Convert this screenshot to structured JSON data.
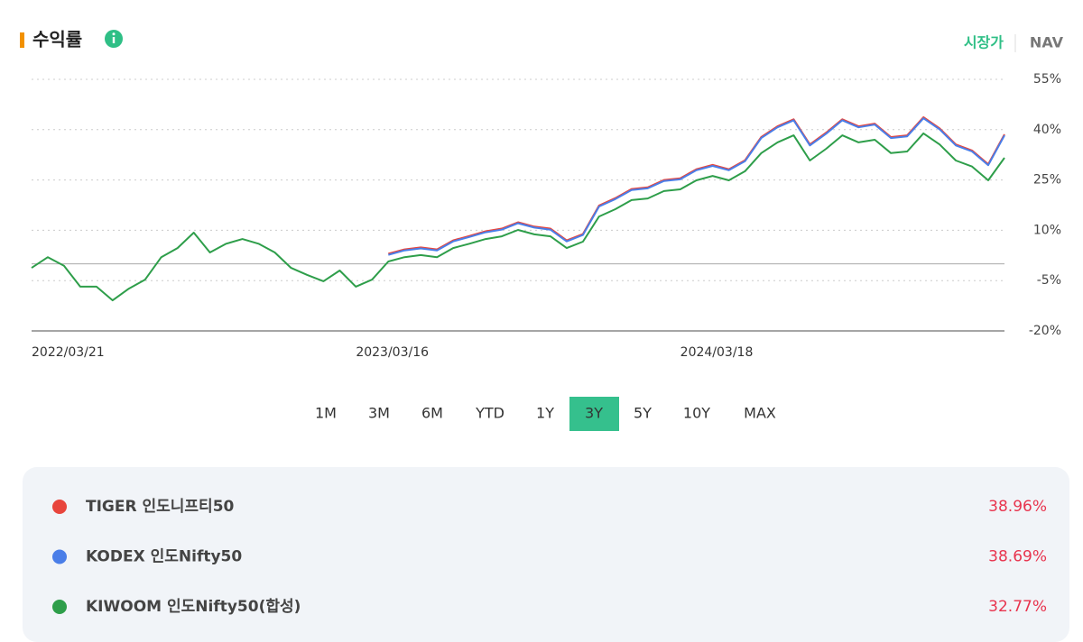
{
  "header": {
    "title": "수익률",
    "price_toggle": [
      "시장가",
      "NAV"
    ],
    "active_toggle": "시장가"
  },
  "tabs": {
    "items": [
      "1M",
      "3M",
      "6M",
      "YTD",
      "1Y",
      "3Y",
      "5Y",
      "10Y",
      "MAX"
    ],
    "active": "3Y"
  },
  "chart_data": {
    "type": "line",
    "categories": [
      "2022/03/21",
      null,
      null,
      null,
      null,
      null,
      null,
      null,
      null,
      null,
      null,
      null,
      null,
      null,
      null,
      null,
      null,
      null,
      null,
      null,
      "2023/03/16",
      null,
      null,
      null,
      null,
      null,
      null,
      null,
      null,
      null,
      null,
      null,
      null,
      null,
      null,
      null,
      null,
      null,
      null,
      null,
      "2024/03/18",
      null,
      null,
      null,
      null,
      null,
      null,
      null,
      null,
      null,
      null,
      null,
      null,
      null,
      null,
      null,
      null,
      null,
      null,
      null,
      null
    ],
    "series": [
      {
        "name": "TIGER 인도니프티50",
        "color": "#e8453c",
        "total": 38.96,
        "total_label": "38.96%",
        "values": [
          null,
          null,
          null,
          null,
          null,
          null,
          null,
          null,
          null,
          null,
          null,
          null,
          null,
          null,
          null,
          null,
          null,
          null,
          null,
          null,
          null,
          null,
          3.0,
          4.3,
          4.9,
          4.3,
          7.0,
          8.3,
          9.7,
          10.5,
          12.4,
          11.1,
          10.5,
          7.0,
          8.9,
          17.4,
          19.6,
          22.3,
          22.8,
          25.0,
          25.5,
          28.2,
          29.5,
          28.2,
          30.9,
          37.8,
          41.0,
          43.1,
          35.6,
          39.1,
          43.1,
          41.0,
          41.8,
          37.8,
          38.3,
          43.7,
          40.4,
          35.6,
          33.8,
          29.7,
          38.6
        ]
      },
      {
        "name": "KODEX 인도Nifty50",
        "color": "#4a7ee8",
        "total": 38.69,
        "total_label": "38.69%",
        "values": [
          null,
          null,
          null,
          null,
          null,
          null,
          null,
          null,
          null,
          null,
          null,
          null,
          null,
          null,
          null,
          null,
          null,
          null,
          null,
          null,
          null,
          null,
          2.7,
          4.0,
          4.6,
          4.0,
          6.7,
          8.0,
          9.4,
          10.2,
          12.1,
          10.8,
          10.2,
          6.7,
          8.6,
          17.1,
          19.3,
          22.0,
          22.5,
          24.7,
          25.2,
          27.9,
          29.2,
          27.9,
          30.6,
          37.5,
          40.7,
          42.8,
          35.3,
          38.8,
          42.8,
          40.7,
          41.5,
          37.5,
          38.0,
          43.4,
          40.1,
          35.3,
          33.5,
          29.4,
          38.3
        ]
      },
      {
        "name": "KIWOOM 인도Nifty50(합성)",
        "color": "#2e9e4a",
        "total": 32.77,
        "total_label": "32.77%",
        "values": [
          -1.2,
          2,
          -0.6,
          -6.8,
          -6.8,
          -10.9,
          -7.4,
          -4.7,
          2,
          4.7,
          9.3,
          3.4,
          6,
          7.4,
          6,
          3.4,
          -1.2,
          -3.3,
          -5.2,
          -2,
          -6.8,
          -4.7,
          0.7,
          2,
          2.6,
          2,
          4.7,
          6,
          7.4,
          8.2,
          10.1,
          8.8,
          8.2,
          4.7,
          6.6,
          14.1,
          16.3,
          19,
          19.5,
          21.7,
          22.2,
          24.9,
          26.2,
          24.9,
          27.6,
          33,
          36.2,
          38.3,
          30.8,
          34.3,
          38.3,
          36.2,
          37,
          33,
          33.5,
          38.9,
          35.6,
          30.8,
          29,
          24.9,
          31.6
        ]
      }
    ],
    "ylim": [
      -20,
      55
    ],
    "yticks": [
      {
        "value": -20,
        "label": "-20%"
      },
      {
        "value": -5,
        "label": "-5%"
      },
      {
        "value": 10,
        "label": "10%"
      },
      {
        "value": 25,
        "label": "25%"
      },
      {
        "value": 40,
        "label": "40%"
      },
      {
        "value": 55,
        "label": "55%"
      }
    ],
    "grid": true
  }
}
